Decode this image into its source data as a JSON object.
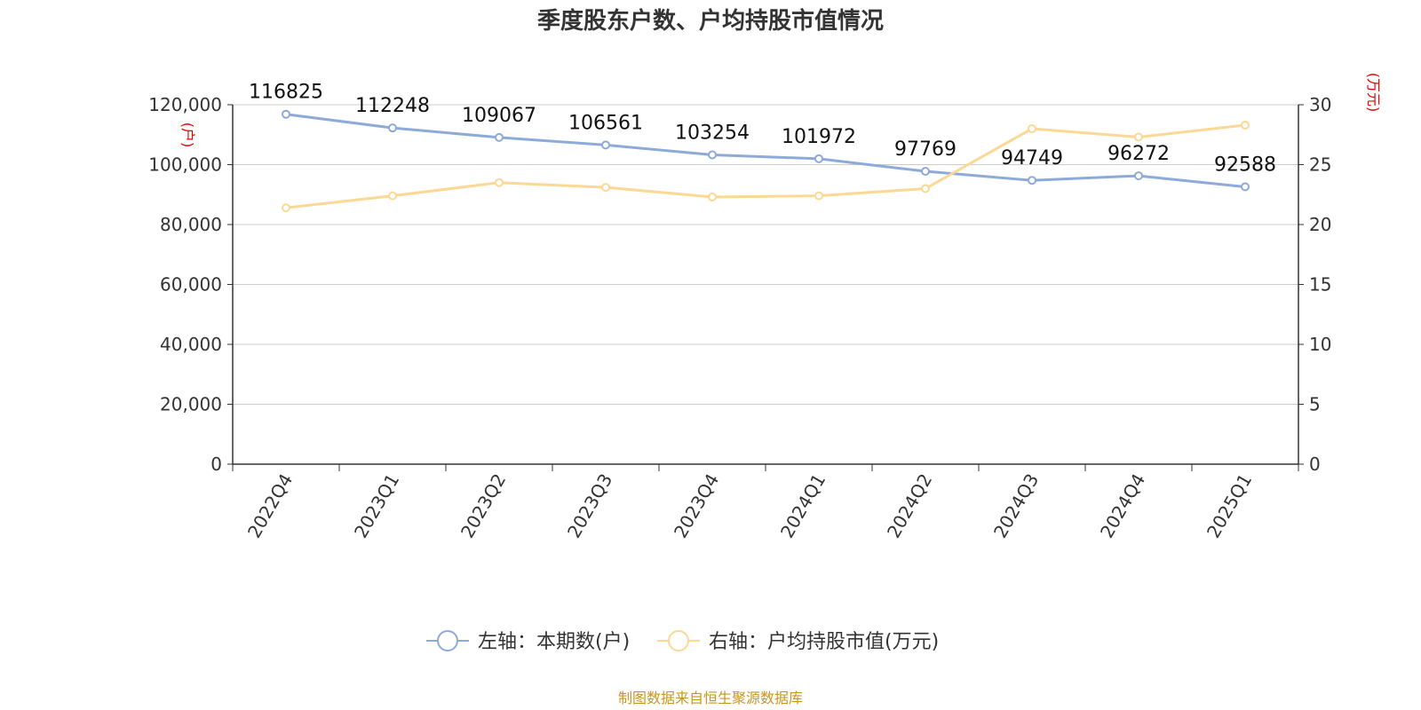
{
  "chart_data": {
    "type": "line",
    "title": "季度股东户数、户均持股市值情况",
    "categories": [
      "2022Q4",
      "2023Q1",
      "2023Q2",
      "2023Q3",
      "2023Q4",
      "2024Q1",
      "2024Q2",
      "2024Q3",
      "2024Q4",
      "2025Q1"
    ],
    "left_axis": {
      "unit": "(户)",
      "ylim": [
        0,
        120000
      ],
      "ticks": [
        "0",
        "20,000",
        "40,000",
        "60,000",
        "80,000",
        "100,000",
        "120,000"
      ]
    },
    "right_axis": {
      "unit": "(万元)",
      "ylim": [
        0,
        30
      ],
      "ticks": [
        "0",
        "5",
        "10",
        "15",
        "20",
        "25",
        "30"
      ]
    },
    "series": [
      {
        "name": "左轴：本期数(户)",
        "axis": "left",
        "color": "#8eaad8",
        "values": [
          116825,
          112248,
          109067,
          106561,
          103254,
          101972,
          97769,
          94749,
          96272,
          92588
        ],
        "labels": [
          "116825",
          "112248",
          "109067",
          "106561",
          "103254",
          "101972",
          "97769",
          "94749",
          "96272",
          "92588"
        ]
      },
      {
        "name": "右轴：户均持股市值(万元)",
        "axis": "right",
        "color": "#fcd894",
        "values": [
          21.4,
          22.4,
          23.5,
          23.1,
          22.3,
          22.4,
          23.0,
          28.0,
          27.3,
          28.3
        ]
      }
    ],
    "grid": true,
    "legend": "bottom-center"
  },
  "source": "制图数据来自恒生聚源数据库"
}
